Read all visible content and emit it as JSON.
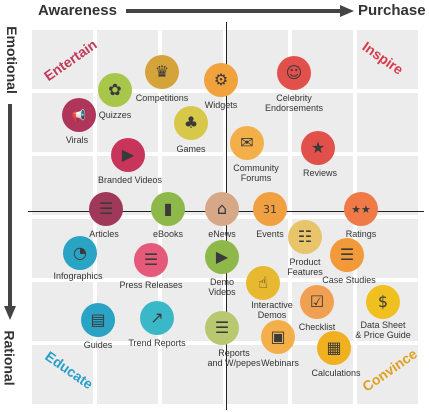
{
  "header": {
    "left": "Awareness",
    "right": "Purchase"
  },
  "sides": {
    "top": "Emotional",
    "bottom": "Rational"
  },
  "corners": {
    "entertain": {
      "text": "Entertain",
      "color": "#c23b5a"
    },
    "inspire": {
      "text": "Inspire",
      "color": "#d93a4a"
    },
    "educate": {
      "text": "Educate",
      "color": "#2a9fc9"
    },
    "convince": {
      "text": "Convince",
      "color": "#e0a020"
    }
  },
  "nodes": [
    {
      "id": "quizzes",
      "label": "Quizzes",
      "color": "#a8c64a",
      "icon": "brain-icon",
      "glyph": "✿"
    },
    {
      "id": "competitions",
      "label": "Competitions",
      "color": "#d4a43a",
      "icon": "trophy-icon",
      "glyph": "♛"
    },
    {
      "id": "widgets",
      "label": "Widgets",
      "color": "#f2a23c",
      "icon": "gear-icon",
      "glyph": "⚙"
    },
    {
      "id": "celebrity",
      "label": "Celebrity\nEndorsements",
      "color": "#e2504c",
      "icon": "people-icon",
      "glyph": "☺"
    },
    {
      "id": "virals",
      "label": "Virals",
      "color": "#b0355a",
      "icon": "megaphone-icon",
      "glyph": "📢"
    },
    {
      "id": "games",
      "label": "Games",
      "color": "#d8c84a",
      "icon": "gamepad-icon",
      "glyph": "♣"
    },
    {
      "id": "community",
      "label": "Community\nForums",
      "color": "#f3b04a",
      "icon": "chat-icon",
      "glyph": "✉"
    },
    {
      "id": "reviews",
      "label": "Reviews",
      "color": "#e2504c",
      "icon": "award-icon",
      "glyph": "★"
    },
    {
      "id": "branded",
      "label": "Branded Videos",
      "color": "#c8355a",
      "icon": "video-icon",
      "glyph": "▶"
    },
    {
      "id": "articles",
      "label": "Articles",
      "color": "#a0385a",
      "icon": "article-icon",
      "glyph": "☰"
    },
    {
      "id": "ebooks",
      "label": "eBooks",
      "color": "#8fb84a",
      "icon": "ebook-icon",
      "glyph": "▮"
    },
    {
      "id": "enews",
      "label": "eNews",
      "color": "#d7a888",
      "icon": "mouse-icon",
      "glyph": "⌂"
    },
    {
      "id": "events",
      "label": "Events",
      "color": "#f0a040",
      "icon": "calendar-icon",
      "glyph": "31"
    },
    {
      "id": "ratings",
      "label": "Ratings",
      "color": "#ef7a48",
      "icon": "stars-icon",
      "glyph": "★★"
    },
    {
      "id": "infographics",
      "label": "Infographics",
      "color": "#2aa3c4",
      "icon": "infographic-icon",
      "glyph": "◔"
    },
    {
      "id": "product",
      "label": "Product\nFeatures",
      "color": "#e8c46a",
      "icon": "list-icon",
      "glyph": "☷"
    },
    {
      "id": "press",
      "label": "Press Releases",
      "color": "#e55a7a",
      "icon": "newspaper-icon",
      "glyph": "☰"
    },
    {
      "id": "demo",
      "label": "Demo\nVideos",
      "color": "#8fb84a",
      "icon": "monitor-icon",
      "glyph": "▶"
    },
    {
      "id": "casestudies",
      "label": "Case Studies",
      "color": "#f29a3a",
      "icon": "document-icon",
      "glyph": "☰"
    },
    {
      "id": "interactive",
      "label": "Interactive\nDemos",
      "color": "#e8b830",
      "icon": "touch-icon",
      "glyph": "☝"
    },
    {
      "id": "guides",
      "label": "Guides",
      "color": "#2aa3c4",
      "icon": "guide-icon",
      "glyph": "▤"
    },
    {
      "id": "trend",
      "label": "Trend Reports",
      "color": "#3ab8c8",
      "icon": "chart-icon",
      "glyph": "↗"
    },
    {
      "id": "reports",
      "label": "Reports\nand W/pepes",
      "color": "#b8c870",
      "icon": "report-icon",
      "glyph": "☰"
    },
    {
      "id": "checklist",
      "label": "Checklist",
      "color": "#f0a050",
      "icon": "checklist-icon",
      "glyph": "☑"
    },
    {
      "id": "datasheet",
      "label": "Data Sheet\n& Price Guide",
      "color": "#f0c020",
      "icon": "dollar-icon",
      "glyph": "$"
    },
    {
      "id": "webinars",
      "label": "Webinars",
      "color": "#f3b04a",
      "icon": "presentation-icon",
      "glyph": "▣"
    },
    {
      "id": "calculations",
      "label": "Calculations",
      "color": "#f0b020",
      "icon": "calculator-icon",
      "glyph": "▦"
    }
  ]
}
